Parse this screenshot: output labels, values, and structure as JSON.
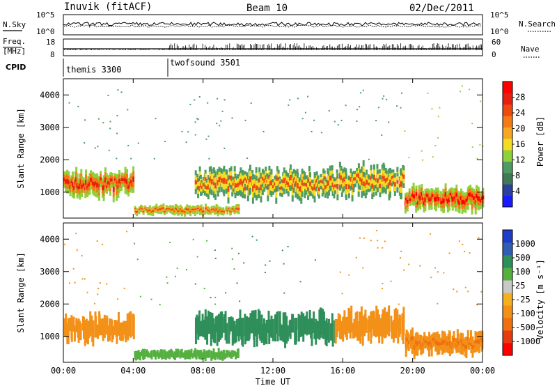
{
  "header": {
    "station": "Inuvik (fitACF)",
    "beam": "Beam 10",
    "date": "02/Dec/2011"
  },
  "aux_labels": {
    "left_noise": "N.Sky",
    "left_noise_top": "10^5",
    "left_noise_bottom": "10^0",
    "right_noise": "N.Search",
    "right_noise_top": "10^5",
    "right_noise_bottom": "10^0",
    "freq_label_top": "Freq.",
    "freq_label_unit": "[MHz]",
    "freq_top": "18",
    "freq_bottom": "8",
    "nave_label": "Nave",
    "nave_top": "60",
    "nave_bottom": "0",
    "cpid_label": "CPID",
    "cpid_modes": [
      {
        "name": "themis 3300",
        "start_h": 0
      },
      {
        "name": "twofsound 3501",
        "start_h": 6
      }
    ]
  },
  "colors": {
    "power_scale": [
      "#1a1aff",
      "#2b3f9e",
      "#3f7a55",
      "#4f9b64",
      "#8fd13a",
      "#f2dc24",
      "#f5a623",
      "#f37a14",
      "#ee4a10",
      "#e81e0e",
      "#ff0000"
    ],
    "velocity_scale": [
      "#1f3cc8",
      "#2f5fae",
      "#2f8f5a",
      "#55b040",
      "#c8c8c8",
      "#f5b020",
      "#f39018",
      "#f07010",
      "#e83a10",
      "#ff0000"
    ],
    "velocity_gray": "#c8c8c8"
  },
  "chart_data": [
    {
      "type": "heatmap",
      "panel": "power",
      "ylabel": "Slant Range [km]",
      "y_ticks": [
        1000,
        2000,
        3000,
        4000
      ],
      "ylim": [
        200,
        4500
      ],
      "xlim_hours": [
        0,
        24
      ],
      "colorbar": {
        "label": "Power [dB]",
        "ticks": [
          4,
          8,
          12,
          16,
          20,
          24,
          28
        ],
        "range": [
          0,
          30
        ]
      },
      "regions": [
        {
          "t0": 0.0,
          "t1": 4.0,
          "r_lo": 700,
          "r_hi": 1800,
          "peak": 26
        },
        {
          "t0": 4.0,
          "t1": 10.0,
          "r_lo": 250,
          "r_hi": 650,
          "peak": 24
        },
        {
          "t0": 7.5,
          "t1": 15.5,
          "r_lo": 650,
          "r_hi": 1900,
          "peak": 22
        },
        {
          "t0": 15.5,
          "t1": 19.5,
          "r_lo": 700,
          "r_hi": 2000,
          "peak": 22
        },
        {
          "t0": 19.5,
          "t1": 24.0,
          "r_lo": 300,
          "r_hi": 1300,
          "peak": 28
        }
      ]
    },
    {
      "type": "heatmap",
      "panel": "velocity",
      "ylabel": "Slant Range [km]",
      "y_ticks": [
        1000,
        2000,
        3000,
        4000
      ],
      "ylim": [
        200,
        4500
      ],
      "xlim_hours": [
        0,
        24
      ],
      "colorbar": {
        "label": "Velocity [m s⁻¹]",
        "ticks": [
          1000,
          500,
          100,
          25,
          -25,
          -100,
          -500,
          -1000
        ]
      },
      "regions": [
        {
          "t0": 0.0,
          "t1": 4.0,
          "r_lo": 700,
          "r_hi": 1800,
          "vel": -200
        },
        {
          "t0": 4.0,
          "t1": 10.0,
          "r_lo": 250,
          "r_hi": 650,
          "vel": 50
        },
        {
          "t0": 7.5,
          "t1": 15.5,
          "r_lo": 650,
          "r_hi": 1900,
          "vel": 300
        },
        {
          "t0": 15.5,
          "t1": 19.5,
          "r_lo": 700,
          "r_hi": 2000,
          "vel": -150
        },
        {
          "t0": 19.5,
          "t1": 24.0,
          "r_lo": 300,
          "r_hi": 1300,
          "vel": -400
        }
      ]
    }
  ],
  "x_axis": {
    "label": "Time UT",
    "ticks": [
      "00:00",
      "04:00",
      "08:00",
      "12:00",
      "16:00",
      "20:00",
      "00:00"
    ]
  }
}
